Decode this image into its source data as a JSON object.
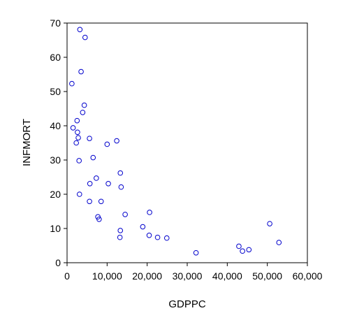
{
  "chart_data": {
    "type": "scatter",
    "title": "",
    "xlabel": "GDPPC",
    "ylabel": "INFMORT",
    "xlim": [
      0,
      60000
    ],
    "ylim": [
      0,
      70
    ],
    "xticks": [
      0,
      10000,
      20000,
      30000,
      40000,
      50000,
      60000
    ],
    "xtick_labels": [
      "0",
      "10,000",
      "20,000",
      "30,000",
      "40,000",
      "50,000",
      "60,000"
    ],
    "yticks": [
      0,
      10,
      20,
      30,
      40,
      50,
      60,
      70
    ],
    "ytick_labels": [
      "0",
      "10",
      "20",
      "30",
      "40",
      "50",
      "60",
      "70"
    ],
    "grid": false,
    "marker_color": "#0000cc",
    "points": [
      {
        "x": 3200,
        "y": 68.1
      },
      {
        "x": 4500,
        "y": 65.8
      },
      {
        "x": 3500,
        "y": 55.8
      },
      {
        "x": 1200,
        "y": 52.3
      },
      {
        "x": 4300,
        "y": 46.0
      },
      {
        "x": 3900,
        "y": 43.9
      },
      {
        "x": 2500,
        "y": 41.5
      },
      {
        "x": 1500,
        "y": 39.4
      },
      {
        "x": 2600,
        "y": 38.1
      },
      {
        "x": 2800,
        "y": 36.5
      },
      {
        "x": 5600,
        "y": 36.3
      },
      {
        "x": 12400,
        "y": 35.6
      },
      {
        "x": 2300,
        "y": 35.0
      },
      {
        "x": 10000,
        "y": 34.6
      },
      {
        "x": 6500,
        "y": 30.7
      },
      {
        "x": 3000,
        "y": 29.8
      },
      {
        "x": 13300,
        "y": 26.2
      },
      {
        "x": 7300,
        "y": 24.7
      },
      {
        "x": 5700,
        "y": 23.1
      },
      {
        "x": 10300,
        "y": 23.1
      },
      {
        "x": 13500,
        "y": 22.1
      },
      {
        "x": 3100,
        "y": 20.0
      },
      {
        "x": 5600,
        "y": 17.9
      },
      {
        "x": 8500,
        "y": 17.9
      },
      {
        "x": 14500,
        "y": 14.1
      },
      {
        "x": 20600,
        "y": 14.7
      },
      {
        "x": 7700,
        "y": 13.4
      },
      {
        "x": 8000,
        "y": 12.7
      },
      {
        "x": 50600,
        "y": 11.4
      },
      {
        "x": 18900,
        "y": 10.5
      },
      {
        "x": 13300,
        "y": 9.4
      },
      {
        "x": 20500,
        "y": 8.0
      },
      {
        "x": 13200,
        "y": 7.4
      },
      {
        "x": 22600,
        "y": 7.4
      },
      {
        "x": 24900,
        "y": 7.2
      },
      {
        "x": 52900,
        "y": 5.9
      },
      {
        "x": 42900,
        "y": 4.8
      },
      {
        "x": 45400,
        "y": 3.8
      },
      {
        "x": 43800,
        "y": 3.4
      },
      {
        "x": 32200,
        "y": 2.9
      }
    ]
  }
}
